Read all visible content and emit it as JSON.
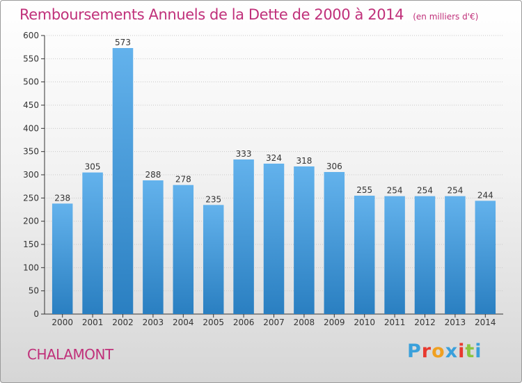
{
  "title": "Remboursements Annuels de la Dette de 2000 à 2014",
  "subtitle": "(en milliers d'€)",
  "place": "CHALAMONT",
  "logo": {
    "text": "Proxiti",
    "letter_colors": [
      "#3aa0db",
      "#e8392f",
      "#f0a020",
      "#3aa0db",
      "#e8392f",
      "#8bc540",
      "#3aa0db"
    ]
  },
  "colors": {
    "title": "#c0307a",
    "bar_top": "#63b2ec",
    "bar_bottom": "#2a7fc1",
    "grid": "#c8c8c8"
  },
  "chart_data": {
    "type": "bar",
    "title": "Remboursements Annuels de la Dette de 2000 à 2014",
    "subtitle": "(en milliers d'€)",
    "xlabel": "",
    "ylabel": "",
    "categories": [
      "2000",
      "2001",
      "2002",
      "2003",
      "2004",
      "2005",
      "2006",
      "2007",
      "2008",
      "2009",
      "2010",
      "2011",
      "2012",
      "2013",
      "2014"
    ],
    "values": [
      238,
      305,
      573,
      288,
      278,
      235,
      333,
      324,
      318,
      306,
      255,
      254,
      254,
      254,
      244
    ],
    "ylim": [
      0,
      600
    ],
    "yticks": [
      0,
      50,
      100,
      150,
      200,
      250,
      300,
      350,
      400,
      450,
      500,
      550,
      600
    ],
    "grid": true,
    "data_labels": true
  }
}
